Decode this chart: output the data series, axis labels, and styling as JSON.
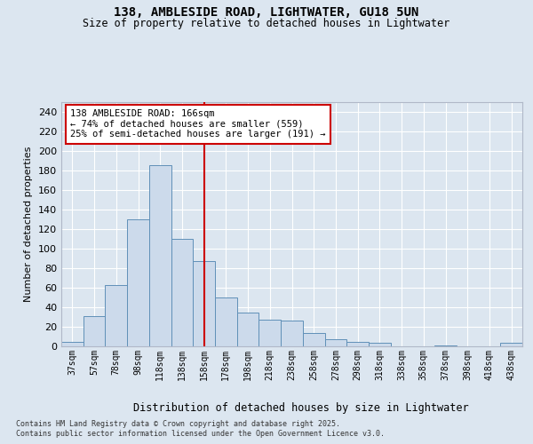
{
  "title1": "138, AMBLESIDE ROAD, LIGHTWATER, GU18 5UN",
  "title2": "Size of property relative to detached houses in Lightwater",
  "xlabel": "Distribution of detached houses by size in Lightwater",
  "ylabel": "Number of detached properties",
  "bar_labels": [
    "37sqm",
    "57sqm",
    "78sqm",
    "98sqm",
    "118sqm",
    "138sqm",
    "158sqm",
    "178sqm",
    "198sqm",
    "218sqm",
    "238sqm",
    "258sqm",
    "278sqm",
    "298sqm",
    "318sqm",
    "338sqm",
    "358sqm",
    "378sqm",
    "398sqm",
    "418sqm",
    "438sqm"
  ],
  "bar_values": [
    5,
    31,
    63,
    130,
    185,
    110,
    87,
    50,
    35,
    27,
    26,
    14,
    7,
    5,
    4,
    0,
    0,
    1,
    0,
    0,
    4
  ],
  "bar_color": "#ccdaeb",
  "bar_edge_color": "#6090b8",
  "vline_pos": 6.0,
  "vline_color": "#cc0000",
  "annotation_text": "138 AMBLESIDE ROAD: 166sqm\n← 74% of detached houses are smaller (559)\n25% of semi-detached houses are larger (191) →",
  "annotation_box_color": "#ffffff",
  "annotation_box_edge": "#cc0000",
  "footer1": "Contains HM Land Registry data © Crown copyright and database right 2025.",
  "footer2": "Contains public sector information licensed under the Open Government Licence v3.0.",
  "bg_color": "#dce6f0",
  "plot_bg_color": "#dce6f0",
  "ylim": [
    0,
    250
  ],
  "yticks": [
    0,
    20,
    40,
    60,
    80,
    100,
    120,
    140,
    160,
    180,
    200,
    220,
    240
  ]
}
